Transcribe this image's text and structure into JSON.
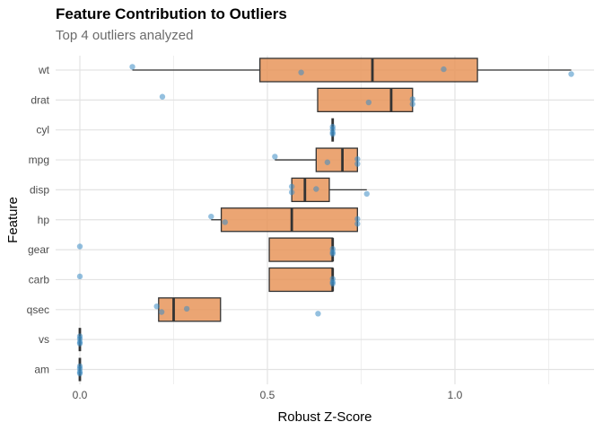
{
  "chart_data": {
    "type": "boxplot",
    "orientation": "horizontal",
    "title": "Feature Contribution to Outliers",
    "subtitle": "Top 4 outliers analyzed",
    "xlabel": "Robust Z-Score",
    "ylabel": "Feature",
    "xlim": [
      -0.07,
      1.37
    ],
    "xticks": [
      0.0,
      0.5,
      1.0
    ],
    "xtick_labels": [
      "0.0",
      "0.5",
      "1.0"
    ],
    "grid": true,
    "legend": "none",
    "box_color": "#E8955A",
    "point_color": "#3C8DC4",
    "categories": [
      "wt",
      "drat",
      "cyl",
      "mpg",
      "disp",
      "hp",
      "gear",
      "carb",
      "qsec",
      "vs",
      "am"
    ],
    "boxes": [
      {
        "feature": "wt",
        "min": 0.14,
        "q1": 0.48,
        "median": 0.78,
        "q3": 1.06,
        "max": 1.31,
        "outliers": []
      },
      {
        "feature": "drat",
        "min": 0.634,
        "q1": 0.634,
        "median": 0.83,
        "q3": 0.887,
        "max": 0.887,
        "outliers": [
          0.22
        ]
      },
      {
        "feature": "cyl",
        "min": 0.674,
        "q1": 0.674,
        "median": 0.674,
        "q3": 0.674,
        "max": 0.674,
        "outliers": []
      },
      {
        "feature": "mpg",
        "min": 0.52,
        "q1": 0.63,
        "median": 0.7,
        "q3": 0.74,
        "max": 0.74,
        "outliers": []
      },
      {
        "feature": "disp",
        "min": 0.565,
        "q1": 0.565,
        "median": 0.6,
        "q3": 0.665,
        "max": 0.765,
        "outliers": []
      },
      {
        "feature": "hp",
        "min": 0.35,
        "q1": 0.377,
        "median": 0.565,
        "q3": 0.74,
        "max": 0.74,
        "outliers": []
      },
      {
        "feature": "gear",
        "min": 0.505,
        "q1": 0.505,
        "median": 0.674,
        "q3": 0.674,
        "max": 0.674,
        "outliers": [
          0.0
        ]
      },
      {
        "feature": "carb",
        "min": 0.505,
        "q1": 0.505,
        "median": 0.674,
        "q3": 0.674,
        "max": 0.674,
        "outliers": [
          0.0
        ]
      },
      {
        "feature": "qsec",
        "min": 0.21,
        "q1": 0.21,
        "median": 0.25,
        "q3": 0.375,
        "max": 0.375,
        "outliers": [
          0.635
        ]
      },
      {
        "feature": "vs",
        "min": 0.0,
        "q1": 0.0,
        "median": 0.0,
        "q3": 0.0,
        "max": 0.0,
        "outliers": []
      },
      {
        "feature": "am",
        "min": 0.0,
        "q1": 0.0,
        "median": 0.0,
        "q3": 0.0,
        "max": 0.0,
        "outliers": []
      }
    ],
    "points": [
      {
        "feature": "wt",
        "values": [
          0.14,
          0.59,
          0.97,
          1.31
        ]
      },
      {
        "feature": "drat",
        "values": [
          0.22,
          0.77,
          0.887,
          0.887
        ]
      },
      {
        "feature": "cyl",
        "values": [
          0.674,
          0.674,
          0.674,
          0.674
        ]
      },
      {
        "feature": "mpg",
        "values": [
          0.52,
          0.66,
          0.74,
          0.74
        ]
      },
      {
        "feature": "disp",
        "values": [
          0.565,
          0.565,
          0.63,
          0.765
        ]
      },
      {
        "feature": "hp",
        "values": [
          0.35,
          0.387,
          0.74,
          0.74
        ]
      },
      {
        "feature": "gear",
        "values": [
          0.0,
          0.674,
          0.674,
          0.674
        ]
      },
      {
        "feature": "carb",
        "values": [
          0.0,
          0.674,
          0.674,
          0.674
        ]
      },
      {
        "feature": "qsec",
        "values": [
          0.205,
          0.218,
          0.285,
          0.635
        ]
      },
      {
        "feature": "vs",
        "values": [
          0.0,
          0.0,
          0.0,
          0.0
        ]
      },
      {
        "feature": "am",
        "values": [
          0.0,
          0.0,
          0.0,
          0.0
        ]
      }
    ]
  }
}
